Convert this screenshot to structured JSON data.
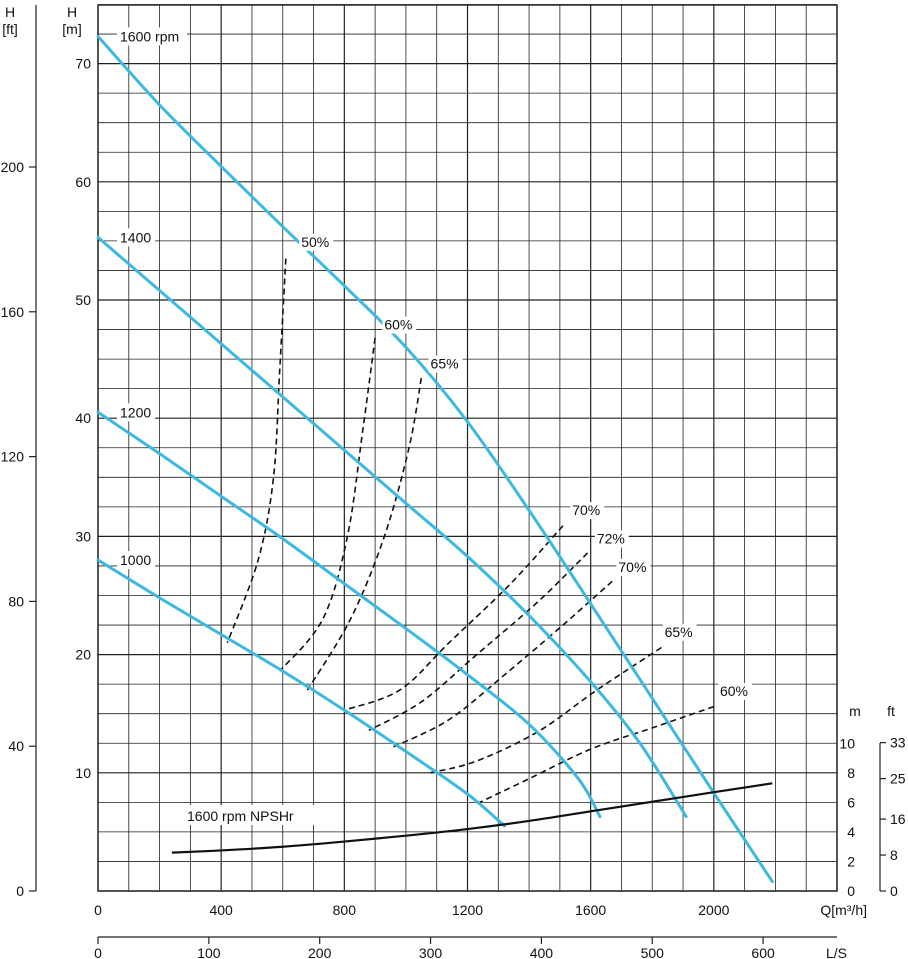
{
  "chart_data": {
    "type": "line",
    "colors": {
      "curve": "#3db9e0",
      "grid": "#222222",
      "dashed": "#111111",
      "npsh": "#111111"
    },
    "axes": {
      "ft_title": "H",
      "ft_unit": "[ft]",
      "m_title": "H",
      "m_unit": "[m]",
      "q_unit": "Q[m³/h]",
      "ls_unit": "L/S",
      "npsh_m_unit": "m",
      "npsh_ft_unit": "ft",
      "xlim": [
        0,
        2400
      ],
      "ylim": [
        0,
        75
      ],
      "q_ticks": [
        "0",
        "400",
        "800",
        "1200",
        "1600",
        "2000"
      ],
      "q_tick_values": [
        0,
        400,
        800,
        1200,
        1600,
        2000
      ],
      "ls_ticks": [
        "0",
        "100",
        "200",
        "300",
        "400",
        "500",
        "600"
      ],
      "ls_tick_values": [
        0,
        100,
        200,
        300,
        400,
        500,
        600
      ],
      "m_ticks": [
        "10",
        "20",
        "30",
        "40",
        "50",
        "60",
        "70"
      ],
      "m_tick_values": [
        10,
        20,
        30,
        40,
        50,
        60,
        70
      ],
      "ft_ticks": [
        "0",
        "40",
        "80",
        "120",
        "160",
        "200"
      ],
      "ft_tick_values": [
        0,
        40,
        80,
        120,
        160,
        200
      ],
      "npsh_m_ticks": [
        "0",
        "2",
        "4",
        "6",
        "8",
        "10"
      ],
      "npsh_m_tick_values": [
        0,
        2,
        4,
        6,
        8,
        10
      ],
      "npsh_ft_ticks": [
        "0",
        "8",
        "16",
        "25",
        "33"
      ],
      "npsh_ft_tick_values": [
        0,
        8,
        16,
        25,
        33
      ],
      "grid": true
    },
    "speed_curves": [
      {
        "label": "1600 rpm",
        "points": [
          [
            0,
            72.3
          ],
          [
            200,
            66.5
          ],
          [
            400,
            61.3
          ],
          [
            600,
            56.2
          ],
          [
            800,
            51.2
          ],
          [
            1000,
            46
          ],
          [
            1200,
            39.7
          ],
          [
            1400,
            32.2
          ],
          [
            1600,
            24.3
          ],
          [
            1800,
            16.3
          ],
          [
            2000,
            8.3
          ],
          [
            2190,
            0.8
          ]
        ]
      },
      {
        "label": "1400",
        "points": [
          [
            0,
            55.3
          ],
          [
            200,
            50.8
          ],
          [
            400,
            46.3
          ],
          [
            600,
            41.8
          ],
          [
            800,
            37.3
          ],
          [
            1000,
            32.8
          ],
          [
            1200,
            28.3
          ],
          [
            1400,
            23.3
          ],
          [
            1600,
            17.7
          ],
          [
            1760,
            12.5
          ],
          [
            1910,
            6.3
          ]
        ]
      },
      {
        "label": "1200",
        "points": [
          [
            0,
            40.5
          ],
          [
            200,
            37
          ],
          [
            400,
            33.4
          ],
          [
            600,
            29.8
          ],
          [
            800,
            26
          ],
          [
            1000,
            22.2
          ],
          [
            1200,
            18.3
          ],
          [
            1400,
            14.1
          ],
          [
            1560,
            9.5
          ],
          [
            1630,
            6.3
          ]
        ]
      },
      {
        "label": "1000",
        "points": [
          [
            0,
            28
          ],
          [
            200,
            24.8
          ],
          [
            400,
            21.7
          ],
          [
            600,
            18.6
          ],
          [
            800,
            15.3
          ],
          [
            1000,
            11.8
          ],
          [
            1200,
            8.2
          ],
          [
            1320,
            5.5
          ]
        ]
      }
    ],
    "npsh_curve": {
      "label": "1600 rpm NPSHr",
      "points_m": [
        [
          240,
          2.6
        ],
        [
          400,
          2.75
        ],
        [
          600,
          3.0
        ],
        [
          800,
          3.35
        ],
        [
          1000,
          3.75
        ],
        [
          1200,
          4.2
        ],
        [
          1400,
          4.75
        ],
        [
          1600,
          5.4
        ],
        [
          1800,
          6.05
        ],
        [
          2000,
          6.7
        ],
        [
          2190,
          7.3
        ]
      ]
    },
    "efficiency_lines": [
      {
        "label": "50%",
        "label_q": 660,
        "label_h": 54.5,
        "points": [
          [
            610,
            53.5
          ],
          [
            590,
            44
          ],
          [
            570,
            35
          ],
          [
            520,
            28
          ],
          [
            420,
            21
          ]
        ]
      },
      {
        "label": "60%",
        "label_q": 930,
        "label_h": 47.5,
        "points": [
          [
            900,
            46.8
          ],
          [
            860,
            39
          ],
          [
            810,
            30
          ],
          [
            730,
            23
          ],
          [
            590,
            18.6
          ]
        ]
      },
      {
        "label": "65%",
        "label_q": 1080,
        "label_h": 44.2,
        "points": [
          [
            1050,
            43.4
          ],
          [
            1010,
            37.5
          ],
          [
            930,
            30
          ],
          [
            820,
            23
          ],
          [
            680,
            17
          ]
        ]
      },
      {
        "label": "70%",
        "label_q": 1540,
        "label_h": 31.8,
        "points": [
          [
            1510,
            30.9
          ],
          [
            1340,
            26
          ],
          [
            1140,
            21
          ],
          [
            980,
            17
          ],
          [
            800,
            15.3
          ]
        ]
      },
      {
        "label": "72%",
        "label_q": 1620,
        "label_h": 29.4,
        "points": [
          [
            1590,
            28.6
          ],
          [
            1430,
            24.5
          ],
          [
            1230,
            20
          ],
          [
            1050,
            16
          ],
          [
            880,
            13.6
          ]
        ]
      },
      {
        "label": "70%",
        "label_q": 1690,
        "label_h": 27,
        "points": [
          [
            1670,
            26.2
          ],
          [
            1510,
            22.5
          ],
          [
            1330,
            18.5
          ],
          [
            1140,
            14.5
          ],
          [
            960,
            12.2
          ]
        ]
      },
      {
        "label": "65%",
        "label_q": 1840,
        "label_h": 21.5,
        "points": [
          [
            1830,
            20.6
          ],
          [
            1620,
            17
          ],
          [
            1430,
            13.5
          ],
          [
            1230,
            11
          ],
          [
            1080,
            10
          ]
        ]
      },
      {
        "label": "60%",
        "label_q": 2020,
        "label_h": 16.5,
        "points": [
          [
            2000,
            15.6
          ],
          [
            1800,
            13.8
          ],
          [
            1600,
            12
          ],
          [
            1400,
            9.5
          ],
          [
            1240,
            7.5
          ]
        ]
      }
    ]
  }
}
